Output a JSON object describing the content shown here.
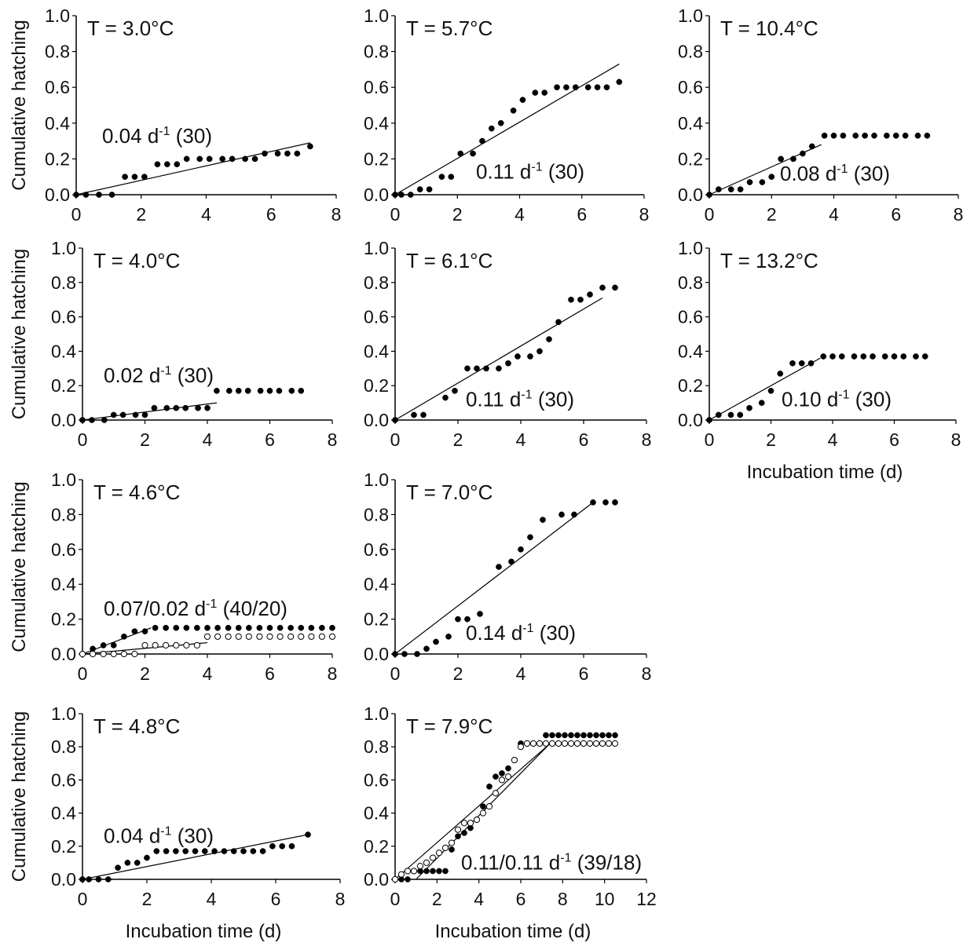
{
  "figure": {
    "ylabel": "Cumulative hatching",
    "xlabel": "Incubation time (d)"
  },
  "chart_data": [
    {
      "type": "scatter",
      "title": "T = 3.0°C",
      "rate_label": "0.04 d",
      "rate_sup": "-1",
      "rate_n": " (30)",
      "xlim": [
        0,
        8
      ],
      "ylim": [
        0,
        1
      ],
      "xticks": [
        "0",
        "2",
        "4",
        "6",
        "8"
      ],
      "yticks": [
        "0.0",
        "0.2",
        "0.4",
        "0.6",
        "0.8",
        "1.0"
      ],
      "show_ylabel": true,
      "show_xlabel": false,
      "series": [
        {
          "filled": true,
          "x": [
            0,
            0.3,
            0.7,
            1.1,
            1.5,
            1.8,
            2.1,
            2.5,
            2.8,
            3.1,
            3.4,
            3.8,
            4.1,
            4.5,
            4.8,
            5.2,
            5.5,
            5.8,
            6.2,
            6.5,
            6.8,
            7.2
          ],
          "y": [
            0,
            0,
            0,
            0,
            0.1,
            0.1,
            0.1,
            0.17,
            0.17,
            0.17,
            0.2,
            0.2,
            0.2,
            0.2,
            0.2,
            0.2,
            0.2,
            0.23,
            0.23,
            0.23,
            0.23,
            0.27
          ]
        }
      ],
      "fits": [
        {
          "x": [
            0,
            7.2
          ],
          "y": [
            0,
            0.29
          ]
        }
      ]
    },
    {
      "type": "scatter",
      "title": "T = 5.7°C",
      "rate_label": "0.11 d",
      "rate_sup": "-1",
      "rate_n": " (30)",
      "xlim": [
        0,
        8
      ],
      "ylim": [
        0,
        1
      ],
      "xticks": [
        "0",
        "2",
        "4",
        "6",
        "8"
      ],
      "yticks": [
        "0.0",
        "0.2",
        "0.4",
        "0.6",
        "0.8",
        "1.0"
      ],
      "show_ylabel": false,
      "show_xlabel": false,
      "series": [
        {
          "filled": true,
          "x": [
            0,
            0.2,
            0.5,
            0.8,
            1.1,
            1.5,
            1.8,
            2.1,
            2.5,
            2.8,
            3.1,
            3.4,
            3.8,
            4.1,
            4.5,
            4.8,
            5.2,
            5.5,
            5.8,
            6.2,
            6.5,
            6.8,
            7.2
          ],
          "y": [
            0,
            0,
            0,
            0.03,
            0.03,
            0.1,
            0.1,
            0.23,
            0.23,
            0.3,
            0.37,
            0.4,
            0.47,
            0.53,
            0.57,
            0.57,
            0.6,
            0.6,
            0.6,
            0.6,
            0.6,
            0.6,
            0.63
          ]
        }
      ],
      "fits": [
        {
          "x": [
            0,
            7.2
          ],
          "y": [
            0,
            0.73
          ]
        }
      ]
    },
    {
      "type": "scatter",
      "title": "T = 10.4°C",
      "rate_label": "0.08 d",
      "rate_sup": "-1",
      "rate_n": " (30)",
      "xlim": [
        0,
        8
      ],
      "ylim": [
        0,
        1
      ],
      "xticks": [
        "0",
        "2",
        "4",
        "6",
        "8"
      ],
      "yticks": [
        "0.0",
        "0.2",
        "0.4",
        "0.6",
        "0.8",
        "1.0"
      ],
      "show_ylabel": false,
      "show_xlabel": false,
      "series": [
        {
          "filled": true,
          "x": [
            0,
            0.3,
            0.7,
            1.0,
            1.3,
            1.7,
            2.0,
            2.3,
            2.7,
            3.0,
            3.3,
            3.7,
            4.0,
            4.3,
            4.7,
            5.0,
            5.3,
            5.7,
            6.0,
            6.3,
            6.7,
            7.0
          ],
          "y": [
            0,
            0.03,
            0.03,
            0.03,
            0.07,
            0.07,
            0.1,
            0.2,
            0.2,
            0.23,
            0.27,
            0.33,
            0.33,
            0.33,
            0.33,
            0.33,
            0.33,
            0.33,
            0.33,
            0.33,
            0.33,
            0.33
          ]
        }
      ],
      "fits": [
        {
          "x": [
            0,
            3.6
          ],
          "y": [
            0,
            0.28
          ]
        }
      ]
    },
    {
      "type": "scatter",
      "title": "T = 4.0°C",
      "rate_label": "0.02 d",
      "rate_sup": "-1",
      "rate_n": " (30)",
      "xlim": [
        0,
        8
      ],
      "ylim": [
        0,
        1
      ],
      "xticks": [
        "0",
        "2",
        "4",
        "6",
        "8"
      ],
      "yticks": [
        "0.0",
        "0.2",
        "0.4",
        "0.6",
        "0.8",
        "1.0"
      ],
      "show_ylabel": true,
      "show_xlabel": false,
      "series": [
        {
          "filled": true,
          "x": [
            0,
            0.3,
            0.7,
            1.0,
            1.3,
            1.7,
            2.0,
            2.3,
            2.7,
            3.0,
            3.3,
            3.7,
            4.0,
            4.3,
            4.7,
            5.0,
            5.3,
            5.7,
            6.0,
            6.3,
            6.7,
            7.0
          ],
          "y": [
            0,
            0,
            0,
            0.03,
            0.03,
            0.03,
            0.03,
            0.07,
            0.07,
            0.07,
            0.07,
            0.07,
            0.07,
            0.17,
            0.17,
            0.17,
            0.17,
            0.17,
            0.17,
            0.17,
            0.17,
            0.17
          ]
        }
      ],
      "fits": [
        {
          "x": [
            0,
            4.3
          ],
          "y": [
            0,
            0.1
          ]
        }
      ]
    },
    {
      "type": "scatter",
      "title": "T = 6.1°C",
      "rate_label": "0.11 d",
      "rate_sup": "-1",
      "rate_n": " (30)",
      "xlim": [
        0,
        8
      ],
      "ylim": [
        0,
        1
      ],
      "xticks": [
        "0",
        "2",
        "4",
        "6",
        "8"
      ],
      "yticks": [
        "0.0",
        "0.2",
        "0.4",
        "0.6",
        "0.8",
        "1.0"
      ],
      "show_ylabel": false,
      "show_xlabel": false,
      "series": [
        {
          "filled": true,
          "x": [
            0,
            0.6,
            0.9,
            1.6,
            1.9,
            2.3,
            2.6,
            2.9,
            3.3,
            3.6,
            3.9,
            4.3,
            4.6,
            4.9,
            5.2,
            5.6,
            5.9,
            6.2,
            6.6,
            7.0
          ],
          "y": [
            0,
            0.03,
            0.03,
            0.13,
            0.17,
            0.3,
            0.3,
            0.3,
            0.3,
            0.33,
            0.37,
            0.37,
            0.4,
            0.47,
            0.57,
            0.7,
            0.7,
            0.73,
            0.77,
            0.77
          ]
        }
      ],
      "fits": [
        {
          "x": [
            0,
            6.6
          ],
          "y": [
            0,
            0.71
          ]
        }
      ]
    },
    {
      "type": "scatter",
      "title": "T = 13.2°C",
      "rate_label": "0.10 d",
      "rate_sup": "-1",
      "rate_n": " (30)",
      "xlim": [
        0,
        8
      ],
      "ylim": [
        0,
        1
      ],
      "xticks": [
        "0",
        "2",
        "4",
        "6",
        "8"
      ],
      "yticks": [
        "0.0",
        "0.2",
        "0.4",
        "0.6",
        "0.8",
        "1.0"
      ],
      "show_ylabel": false,
      "show_xlabel": true,
      "series": [
        {
          "filled": true,
          "x": [
            0,
            0.3,
            0.7,
            1.0,
            1.3,
            1.7,
            2.0,
            2.3,
            2.7,
            3.0,
            3.3,
            3.7,
            4.0,
            4.3,
            4.7,
            5.0,
            5.3,
            5.7,
            6.0,
            6.3,
            6.7,
            7.0
          ],
          "y": [
            0,
            0.03,
            0.03,
            0.03,
            0.07,
            0.1,
            0.17,
            0.27,
            0.33,
            0.33,
            0.33,
            0.37,
            0.37,
            0.37,
            0.37,
            0.37,
            0.37,
            0.37,
            0.37,
            0.37,
            0.37,
            0.37
          ]
        }
      ],
      "fits": [
        {
          "x": [
            0,
            3.6
          ],
          "y": [
            0,
            0.36
          ]
        }
      ]
    },
    {
      "type": "scatter",
      "title": "T = 4.6°C",
      "rate_label": "0.07/0.02 d",
      "rate_sup": "-1",
      "rate_n": " (40/20)",
      "xlim": [
        0,
        8
      ],
      "ylim": [
        0,
        1
      ],
      "xticks": [
        "0",
        "2",
        "4",
        "6",
        "8"
      ],
      "yticks": [
        "0.0",
        "0.2",
        "0.4",
        "0.6",
        "0.8",
        "1.0"
      ],
      "show_ylabel": true,
      "show_xlabel": false,
      "series": [
        {
          "filled": true,
          "x": [
            0,
            0.33,
            0.67,
            1.0,
            1.33,
            1.67,
            2.0,
            2.33,
            2.67,
            3.0,
            3.33,
            3.67,
            4.0,
            4.33,
            4.67,
            5.0,
            5.33,
            5.67,
            6.0,
            6.33,
            6.67,
            7.0,
            7.33,
            7.67,
            8.0
          ],
          "y": [
            0,
            0.03,
            0.05,
            0.05,
            0.1,
            0.13,
            0.13,
            0.15,
            0.15,
            0.15,
            0.15,
            0.15,
            0.15,
            0.15,
            0.15,
            0.15,
            0.15,
            0.15,
            0.15,
            0.15,
            0.15,
            0.15,
            0.15,
            0.15,
            0.15
          ]
        },
        {
          "filled": false,
          "x": [
            0,
            0.33,
            0.67,
            1.0,
            1.33,
            1.67,
            2.0,
            2.33,
            2.67,
            3.0,
            3.33,
            3.67,
            4.0,
            4.33,
            4.67,
            5.0,
            5.33,
            5.67,
            6.0,
            6.33,
            6.67,
            7.0,
            7.33,
            7.67,
            8.0
          ],
          "y": [
            0,
            0,
            0,
            0,
            0,
            0,
            0.05,
            0.05,
            0.05,
            0.05,
            0.05,
            0.05,
            0.1,
            0.1,
            0.1,
            0.1,
            0.1,
            0.1,
            0.1,
            0.1,
            0.1,
            0.1,
            0.1,
            0.1,
            0.1
          ]
        }
      ],
      "fits": [
        {
          "x": [
            0,
            2.2
          ],
          "y": [
            0,
            0.15
          ]
        },
        {
          "x": [
            0,
            4.0
          ],
          "y": [
            0,
            0.065
          ]
        }
      ]
    },
    {
      "type": "scatter",
      "title": "T = 7.0°C",
      "rate_label": "0.14 d",
      "rate_sup": "-1",
      "rate_n": " (30)",
      "xlim": [
        0,
        8
      ],
      "ylim": [
        0,
        1
      ],
      "xticks": [
        "0",
        "2",
        "4",
        "6",
        "8"
      ],
      "yticks": [
        "0.0",
        "0.2",
        "0.4",
        "0.6",
        "0.8",
        "1.0"
      ],
      "show_ylabel": false,
      "show_xlabel": false,
      "series": [
        {
          "filled": true,
          "x": [
            0,
            0.3,
            0.7,
            1.0,
            1.3,
            1.7,
            2.0,
            2.3,
            2.7,
            3.3,
            3.7,
            4.0,
            4.3,
            4.7,
            5.3,
            5.7,
            6.3,
            6.7,
            7.0
          ],
          "y": [
            0,
            0,
            0,
            0.03,
            0.07,
            0.1,
            0.2,
            0.2,
            0.23,
            0.5,
            0.53,
            0.6,
            0.67,
            0.77,
            0.8,
            0.8,
            0.87,
            0.87,
            0.87
          ]
        }
      ],
      "fits": [
        {
          "x": [
            0,
            6.3
          ],
          "y": [
            0,
            0.87
          ]
        }
      ]
    },
    {
      "type": "scatter",
      "title": "T = 4.8°C",
      "rate_label": "0.04 d",
      "rate_sup": "-1",
      "rate_n": " (30)",
      "xlim": [
        0,
        8
      ],
      "ylim": [
        0,
        1
      ],
      "xticks": [
        "0",
        "2",
        "4",
        "6",
        "8"
      ],
      "yticks": [
        "0.0",
        "0.2",
        "0.4",
        "0.6",
        "0.8",
        "1.0"
      ],
      "show_ylabel": true,
      "show_xlabel": true,
      "series": [
        {
          "filled": true,
          "x": [
            0,
            0.2,
            0.5,
            0.8,
            1.1,
            1.4,
            1.7,
            2.0,
            2.3,
            2.6,
            2.9,
            3.2,
            3.5,
            3.8,
            4.1,
            4.4,
            4.7,
            5.0,
            5.3,
            5.6,
            5.9,
            6.2,
            6.5,
            7.0
          ],
          "y": [
            0,
            0,
            0,
            0,
            0.07,
            0.1,
            0.1,
            0.13,
            0.17,
            0.17,
            0.17,
            0.17,
            0.17,
            0.17,
            0.17,
            0.17,
            0.17,
            0.17,
            0.17,
            0.17,
            0.2,
            0.2,
            0.2,
            0.27
          ]
        }
      ],
      "fits": [
        {
          "x": [
            0,
            7.0
          ],
          "y": [
            0,
            0.27
          ]
        }
      ]
    },
    {
      "type": "scatter",
      "title": "T = 7.9°C",
      "rate_label": "0.11/0.11 d",
      "rate_sup": "-1",
      "rate_n": " (39/18)",
      "xlim": [
        0,
        12
      ],
      "ylim": [
        0,
        1
      ],
      "xticks": [
        "0",
        "2",
        "4",
        "6",
        "8",
        "10",
        "12"
      ],
      "yticks": [
        "0.0",
        "0.2",
        "0.4",
        "0.6",
        "0.8",
        "1.0"
      ],
      "show_ylabel": false,
      "show_xlabel": true,
      "series": [
        {
          "filled": true,
          "x": [
            0,
            0.3,
            0.6,
            0.9,
            1.2,
            1.5,
            1.8,
            2.1,
            2.4,
            2.7,
            3.0,
            3.3,
            3.6,
            3.9,
            4.2,
            4.5,
            4.8,
            5.1,
            5.4,
            5.7,
            6.0,
            6.3,
            6.6,
            6.9,
            7.2,
            7.5,
            7.8,
            8.1,
            8.4,
            8.7,
            9.0,
            9.3,
            9.6,
            9.9,
            10.2,
            10.5
          ],
          "y": [
            0,
            0,
            0,
            0.05,
            0.05,
            0.05,
            0.05,
            0.05,
            0.05,
            0.18,
            0.26,
            0.28,
            0.31,
            0.36,
            0.44,
            0.56,
            0.62,
            0.64,
            0.67,
            0.72,
            0.82,
            0.82,
            0.82,
            0.82,
            0.87,
            0.87,
            0.87,
            0.87,
            0.87,
            0.87,
            0.87,
            0.87,
            0.87,
            0.87,
            0.87,
            0.87
          ]
        },
        {
          "filled": false,
          "x": [
            0,
            0.3,
            0.6,
            0.9,
            1.2,
            1.5,
            1.8,
            2.1,
            2.4,
            2.7,
            3.0,
            3.3,
            3.6,
            3.9,
            4.2,
            4.5,
            4.8,
            5.1,
            5.4,
            5.7,
            6.0,
            6.3,
            6.6,
            6.9,
            7.2,
            7.5,
            7.8,
            8.1,
            8.4,
            8.7,
            9.0,
            9.3,
            9.6,
            9.9,
            10.2,
            10.5
          ],
          "y": [
            0,
            0.03,
            0.05,
            0.05,
            0.08,
            0.1,
            0.13,
            0.16,
            0.19,
            0.22,
            0.3,
            0.34,
            0.34,
            0.36,
            0.4,
            0.44,
            0.52,
            0.6,
            0.62,
            0.72,
            0.8,
            0.82,
            0.82,
            0.82,
            0.82,
            0.82,
            0.82,
            0.82,
            0.82,
            0.82,
            0.82,
            0.82,
            0.82,
            0.82,
            0.82,
            0.82
          ]
        }
      ],
      "fits": [
        {
          "x": [
            0,
            7.4
          ],
          "y": [
            0,
            0.82
          ]
        },
        {
          "x": [
            1.0,
            7.4
          ],
          "y": [
            0,
            0.82
          ]
        }
      ]
    }
  ]
}
